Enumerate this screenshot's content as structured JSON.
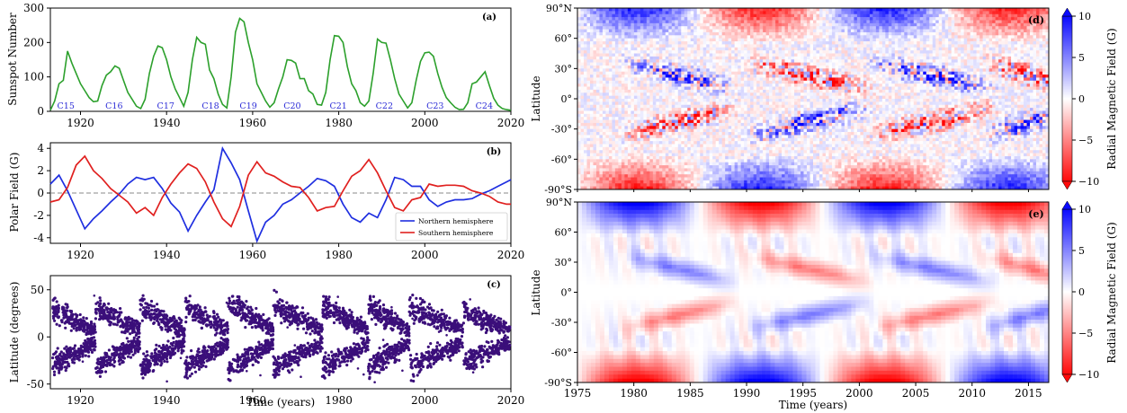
{
  "chart_data": [
    {
      "panel": "a",
      "type": "line",
      "panel_label": "(a)",
      "ylabel": "Sunspot Number",
      "xlim": [
        1913,
        2020
      ],
      "ylim": [
        0,
        300
      ],
      "xticks": [
        1920,
        1940,
        1960,
        1980,
        2000,
        2020
      ],
      "yticks": [
        0,
        100,
        200,
        300
      ],
      "series": [
        {
          "color": "#2ca02c",
          "x": [
            1913,
            1914,
            1915,
            1916,
            1917,
            1918,
            1919,
            1920,
            1921,
            1922,
            1923,
            1924,
            1925,
            1926,
            1927,
            1928,
            1929,
            1930,
            1931,
            1932,
            1933,
            1934,
            1935,
            1936,
            1937,
            1938,
            1939,
            1940,
            1941,
            1942,
            1943,
            1944,
            1945,
            1946,
            1947,
            1948,
            1949,
            1950,
            1951,
            1952,
            1953,
            1954,
            1955,
            1956,
            1957,
            1958,
            1959,
            1960,
            1961,
            1962,
            1963,
            1964,
            1965,
            1966,
            1967,
            1968,
            1969,
            1970,
            1971,
            1972,
            1973,
            1974,
            1975,
            1976,
            1977,
            1978,
            1979,
            1980,
            1981,
            1982,
            1983,
            1984,
            1985,
            1986,
            1987,
            1988,
            1989,
            1990,
            1991,
            1992,
            1993,
            1994,
            1995,
            1996,
            1997,
            1998,
            1999,
            2000,
            2001,
            2002,
            2003,
            2004,
            2005,
            2006,
            2007,
            2008,
            2009,
            2010,
            2011,
            2012,
            2013,
            2014,
            2015,
            2016,
            2017,
            2018,
            2019,
            2020
          ],
          "y": [
            3,
            30,
            80,
            90,
            175,
            140,
            110,
            80,
            60,
            40,
            28,
            30,
            75,
            105,
            115,
            132,
            125,
            90,
            55,
            35,
            15,
            8,
            35,
            110,
            160,
            190,
            185,
            150,
            100,
            65,
            40,
            15,
            55,
            150,
            215,
            200,
            195,
            120,
            95,
            50,
            20,
            10,
            100,
            230,
            270,
            260,
            200,
            150,
            80,
            55,
            30,
            12,
            25,
            65,
            100,
            150,
            148,
            140,
            95,
            95,
            60,
            50,
            20,
            18,
            55,
            150,
            220,
            218,
            200,
            130,
            80,
            60,
            25,
            15,
            30,
            110,
            210,
            200,
            198,
            150,
            95,
            50,
            30,
            10,
            25,
            90,
            145,
            170,
            172,
            160,
            110,
            70,
            40,
            25,
            12,
            5,
            6,
            25,
            80,
            85,
            100,
            115,
            75,
            38,
            18,
            8,
            5,
            3
          ]
        }
      ],
      "annotations": [
        "C15",
        "C16",
        "C17",
        "C18",
        "C19",
        "C20",
        "C21",
        "C22",
        "C23",
        "C24"
      ],
      "annotation_x": [
        1916.6,
        1927.8,
        1939.8,
        1950.2,
        1959.0,
        1969.2,
        1979.9,
        1990.6,
        2002.4,
        2013.8
      ],
      "annotation_y": 18
    },
    {
      "panel": "b",
      "type": "line",
      "panel_label": "(b)",
      "ylabel": "Polar Field (G)",
      "xlim": [
        1913,
        2020
      ],
      "ylim": [
        -4.5,
        4.5
      ],
      "xticks": [
        1920,
        1940,
        1960,
        1980,
        2000,
        2020
      ],
      "yticks": [
        -4,
        -2,
        0,
        2,
        4
      ],
      "reference_line": 0,
      "legend": {
        "position": "lower-right",
        "entries": [
          "Northern hemisphere",
          "Southern hemisphere"
        ]
      },
      "series": [
        {
          "name": "Northern hemisphere",
          "color": "#1f2fe0",
          "x": [
            1913,
            1915,
            1917,
            1919,
            1921,
            1923,
            1925,
            1927,
            1929,
            1931,
            1933,
            1935,
            1937,
            1939,
            1941,
            1943,
            1945,
            1947,
            1949,
            1951,
            1953,
            1955,
            1957,
            1959,
            1961,
            1963,
            1965,
            1967,
            1969,
            1971,
            1973,
            1975,
            1977,
            1979,
            1981,
            1983,
            1985,
            1987,
            1989,
            1991,
            1993,
            1995,
            1997,
            1999,
            2001,
            2003,
            2005,
            2007,
            2009,
            2011,
            2013,
            2015,
            2017,
            2019,
            2020
          ],
          "y": [
            0.8,
            1.6,
            0.2,
            -1.5,
            -3.2,
            -2.3,
            -1.6,
            -0.8,
            -0.1,
            0.8,
            1.4,
            1.2,
            1.4,
            0.4,
            -0.9,
            -1.7,
            -3.4,
            -2.0,
            -0.8,
            0.3,
            4.0,
            2.7,
            1.2,
            -1.6,
            -4.3,
            -2.6,
            -2.0,
            -1.0,
            -0.6,
            0.0,
            0.6,
            1.3,
            1.1,
            0.6,
            -1.0,
            -2.2,
            -2.6,
            -1.8,
            -2.2,
            -0.6,
            1.4,
            1.2,
            0.6,
            0.6,
            -0.6,
            -1.2,
            -0.8,
            -0.6,
            -0.6,
            -0.5,
            -0.1,
            0.2,
            0.6,
            1.0,
            1.2
          ]
        },
        {
          "name": "Southern hemisphere",
          "color": "#e0201f",
          "x": [
            1913,
            1915,
            1917,
            1919,
            1921,
            1923,
            1925,
            1927,
            1929,
            1931,
            1933,
            1935,
            1937,
            1939,
            1941,
            1943,
            1945,
            1947,
            1949,
            1951,
            1953,
            1955,
            1957,
            1959,
            1961,
            1963,
            1965,
            1967,
            1969,
            1971,
            1973,
            1975,
            1977,
            1979,
            1981,
            1983,
            1985,
            1987,
            1989,
            1991,
            1993,
            1995,
            1997,
            1999,
            2001,
            2003,
            2005,
            2007,
            2009,
            2011,
            2013,
            2015,
            2017,
            2019,
            2020
          ],
          "y": [
            -0.8,
            -0.6,
            0.5,
            2.5,
            3.3,
            2.0,
            1.3,
            0.4,
            -0.2,
            -0.8,
            -1.8,
            -1.3,
            -2.0,
            -0.4,
            0.8,
            1.8,
            2.6,
            2.2,
            1.0,
            -0.8,
            -2.3,
            -3.0,
            -1.2,
            1.6,
            2.8,
            1.8,
            1.5,
            1.0,
            0.6,
            0.5,
            -0.4,
            -1.6,
            -1.3,
            -1.2,
            0.2,
            1.5,
            2.0,
            3.0,
            1.8,
            0.2,
            -1.3,
            -1.6,
            -0.6,
            -0.4,
            0.8,
            0.6,
            0.7,
            0.7,
            0.6,
            0.2,
            0.0,
            -0.3,
            -0.8,
            -1.0,
            -1.0
          ]
        }
      ]
    },
    {
      "panel": "c",
      "type": "scatter",
      "panel_label": "(c)",
      "xlabel": "Time (years)",
      "ylabel": "Latitude (degrees)",
      "xlim": [
        1913,
        2020
      ],
      "ylim": [
        -55,
        65
      ],
      "xticks": [
        1920,
        1940,
        1960,
        1980,
        2000,
        2020
      ],
      "yticks": [
        -50,
        0,
        50
      ],
      "color": "#3b0f7a",
      "description_cycles": [
        {
          "start": 1913.5,
          "end": 1923.5,
          "max_lat": 35
        },
        {
          "start": 1923.5,
          "end": 1933.8,
          "max_lat": 38
        },
        {
          "start": 1933.8,
          "end": 1944.2,
          "max_lat": 40
        },
        {
          "start": 1944.2,
          "end": 1954.3,
          "max_lat": 42
        },
        {
          "start": 1954.3,
          "end": 1964.8,
          "max_lat": 48
        },
        {
          "start": 1964.8,
          "end": 1976.2,
          "max_lat": 42
        },
        {
          "start": 1976.2,
          "end": 1986.8,
          "max_lat": 42
        },
        {
          "start": 1986.8,
          "end": 1996.4,
          "max_lat": 40
        },
        {
          "start": 1996.4,
          "end": 2008.9,
          "max_lat": 40
        },
        {
          "start": 2008.9,
          "end": 2019.8,
          "max_lat": 32
        }
      ]
    },
    {
      "panel": "d",
      "type": "heatmap",
      "panel_label": "(d)",
      "ylabel": "Latitude",
      "xlim": [
        1975,
        2016.8
      ],
      "yticks": [
        "90°N",
        "60°",
        "30°",
        "0°",
        "-30°",
        "-60°",
        "-90°S"
      ],
      "colorbar": {
        "label": "Radial Magnetic Field (G)",
        "ticks": [
          10,
          5,
          0,
          -5,
          -10
        ],
        "cmap": "bwr (blue positive, red negative)"
      }
    },
    {
      "panel": "e",
      "type": "heatmap",
      "panel_label": "(e)",
      "xlabel": "Time (years)",
      "ylabel": "Latitude",
      "xlim": [
        1975,
        2016.8
      ],
      "xticks": [
        1975,
        1980,
        1985,
        1990,
        1995,
        2000,
        2005,
        2010,
        2015
      ],
      "yticks": [
        "90°N",
        "60°",
        "30°",
        "0°",
        "-30°",
        "-60°",
        "-90°S"
      ],
      "colorbar": {
        "label": "Radial Magnetic Field (G)",
        "ticks": [
          10,
          5,
          0,
          -5,
          -10
        ],
        "cmap": "bwr (blue positive, red negative)"
      }
    }
  ]
}
